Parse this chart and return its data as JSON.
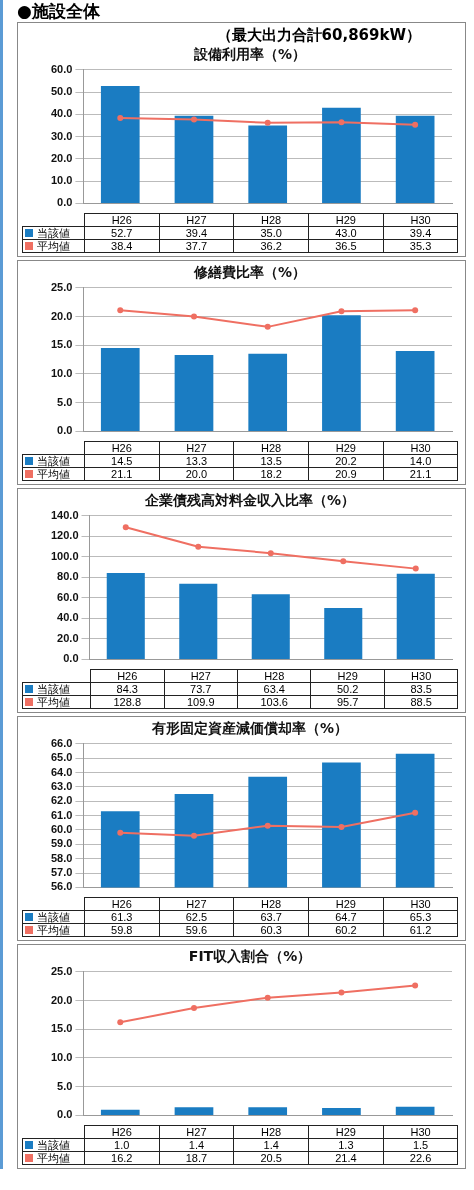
{
  "chart_data": [
    {
      "type": "bar",
      "title": "設備利用率（%）",
      "subtitle": "（最大出力合計60,869kW）",
      "annotations": [
        "●施設全体"
      ],
      "categories": [
        "H26",
        "H27",
        "H28",
        "H29",
        "H30"
      ],
      "series": [
        {
          "name": "当該値",
          "type": "bar",
          "color": "#1a7cc2",
          "values": [
            52.7,
            39.4,
            35.0,
            43.0,
            39.4
          ],
          "value_labels": [
            "52.7",
            "39.4",
            "35.0",
            "43.0",
            "39.4"
          ]
        },
        {
          "name": "平均値",
          "type": "line",
          "color": "#ef6f62",
          "values": [
            38.4,
            37.7,
            36.2,
            36.5,
            35.3
          ],
          "value_labels": [
            "38.4",
            "37.7",
            "36.2",
            "36.5",
            "35.3"
          ]
        }
      ],
      "ylim": [
        0,
        60
      ],
      "yticks": [
        {
          "value": 0,
          "label": "0.0"
        },
        {
          "value": 10,
          "label": "10.0"
        },
        {
          "value": 20,
          "label": "20.0"
        },
        {
          "value": 30,
          "label": "30.0"
        },
        {
          "value": 40,
          "label": "40.0"
        },
        {
          "value": 50,
          "label": "50.0"
        },
        {
          "value": 60,
          "label": "60.0"
        }
      ],
      "grid": "y",
      "legend": "bottom",
      "marker": "circle"
    },
    {
      "type": "bar",
      "title": "修繕費比率（%）",
      "categories": [
        "H26",
        "H27",
        "H28",
        "H29",
        "H30"
      ],
      "series": [
        {
          "name": "当該値",
          "type": "bar",
          "color": "#1a7cc2",
          "values": [
            14.5,
            13.3,
            13.5,
            20.2,
            14.0
          ],
          "value_labels": [
            "14.5",
            "13.3",
            "13.5",
            "20.2",
            "14.0"
          ]
        },
        {
          "name": "平均値",
          "type": "line",
          "color": "#ef6f62",
          "values": [
            21.1,
            20.0,
            18.2,
            20.9,
            21.1
          ],
          "value_labels": [
            "21.1",
            "20.0",
            "18.2",
            "20.9",
            "21.1"
          ]
        }
      ],
      "ylim": [
        0,
        25
      ],
      "yticks": [
        {
          "value": 0,
          "label": "0.0"
        },
        {
          "value": 5,
          "label": "5.0"
        },
        {
          "value": 10,
          "label": "10.0"
        },
        {
          "value": 15,
          "label": "15.0"
        },
        {
          "value": 20,
          "label": "20.0"
        },
        {
          "value": 25,
          "label": "25.0"
        }
      ],
      "grid": "y",
      "legend": "bottom",
      "marker": "circle"
    },
    {
      "type": "bar",
      "title": "企業債残高対料金収入比率（%）",
      "categories": [
        "H26",
        "H27",
        "H28",
        "H29",
        "H30"
      ],
      "series": [
        {
          "name": "当該値",
          "type": "bar",
          "color": "#1a7cc2",
          "values": [
            84.3,
            73.7,
            63.4,
            50.2,
            83.5
          ],
          "value_labels": [
            "84.3",
            "73.7",
            "63.4",
            "50.2",
            "83.5"
          ]
        },
        {
          "name": "平均値",
          "type": "line",
          "color": "#ef6f62",
          "values": [
            128.8,
            109.9,
            103.6,
            95.7,
            88.5
          ],
          "value_labels": [
            "128.8",
            "109.9",
            "103.6",
            "95.7",
            "88.5"
          ]
        }
      ],
      "ylim": [
        0,
        140
      ],
      "yticks": [
        {
          "value": 0,
          "label": "0.0"
        },
        {
          "value": 20,
          "label": "20.0"
        },
        {
          "value": 40,
          "label": "40.0"
        },
        {
          "value": 60,
          "label": "60.0"
        },
        {
          "value": 80,
          "label": "80.0"
        },
        {
          "value": 100,
          "label": "100.0"
        },
        {
          "value": 120,
          "label": "120.0"
        },
        {
          "value": 140,
          "label": "140.0"
        }
      ],
      "grid": "y",
      "legend": "bottom",
      "marker": "circle"
    },
    {
      "type": "bar",
      "title": "有形固定資産減価償却率（%）",
      "categories": [
        "H26",
        "H27",
        "H28",
        "H29",
        "H30"
      ],
      "series": [
        {
          "name": "当該値",
          "type": "bar",
          "color": "#1a7cc2",
          "values": [
            61.3,
            62.5,
            63.7,
            64.7,
            65.3
          ],
          "value_labels": [
            "61.3",
            "62.5",
            "63.7",
            "64.7",
            "65.3"
          ]
        },
        {
          "name": "平均値",
          "type": "line",
          "color": "#ef6f62",
          "values": [
            59.8,
            59.6,
            60.3,
            60.2,
            61.2
          ],
          "value_labels": [
            "59.8",
            "59.6",
            "60.3",
            "60.2",
            "61.2"
          ]
        }
      ],
      "ylim": [
        56,
        66
      ],
      "yticks": [
        {
          "value": 56,
          "label": "56.0"
        },
        {
          "value": 57,
          "label": "57.0"
        },
        {
          "value": 58,
          "label": "58.0"
        },
        {
          "value": 59,
          "label": "59.0"
        },
        {
          "value": 60,
          "label": "60.0"
        },
        {
          "value": 61,
          "label": "61.0"
        },
        {
          "value": 62,
          "label": "62.0"
        },
        {
          "value": 63,
          "label": "63.0"
        },
        {
          "value": 64,
          "label": "64.0"
        },
        {
          "value": 65,
          "label": "65.0"
        },
        {
          "value": 66,
          "label": "66.0"
        }
      ],
      "grid": "y",
      "legend": "bottom",
      "marker": "circle"
    },
    {
      "type": "bar",
      "title": "FIT収入割合（%）",
      "categories": [
        "H26",
        "H27",
        "H28",
        "H29",
        "H30"
      ],
      "series": [
        {
          "name": "当該値",
          "type": "bar",
          "color": "#1a7cc2",
          "values": [
            1.0,
            1.4,
            1.4,
            1.3,
            1.5
          ],
          "value_labels": [
            "1.0",
            "1.4",
            "1.4",
            "1.3",
            "1.5"
          ]
        },
        {
          "name": "平均値",
          "type": "line",
          "color": "#ef6f62",
          "values": [
            16.2,
            18.7,
            20.5,
            21.4,
            22.6
          ],
          "value_labels": [
            "16.2",
            "18.7",
            "20.5",
            "21.4",
            "22.6"
          ]
        }
      ],
      "ylim": [
        0,
        25
      ],
      "yticks": [
        {
          "value": 0,
          "label": "0.0"
        },
        {
          "value": 5,
          "label": "5.0"
        },
        {
          "value": 10,
          "label": "10.0"
        },
        {
          "value": 15,
          "label": "15.0"
        },
        {
          "value": 20,
          "label": "20.0"
        },
        {
          "value": 25,
          "label": "25.0"
        }
      ],
      "grid": "y",
      "legend": "bottom",
      "marker": "circle"
    }
  ]
}
